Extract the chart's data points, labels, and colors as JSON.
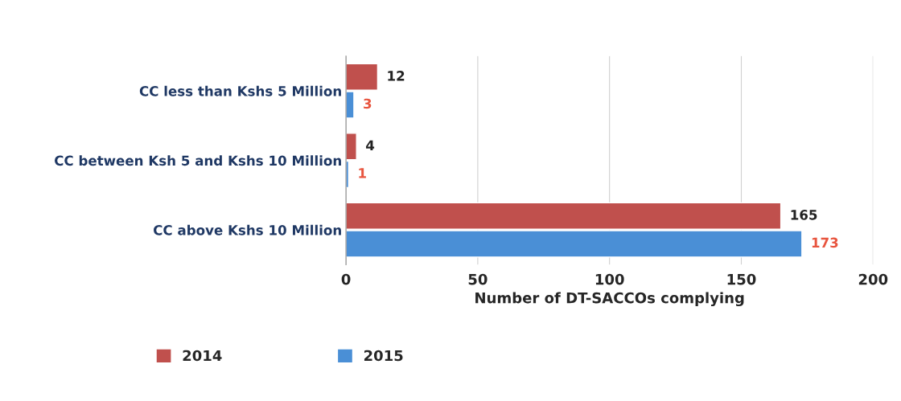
{
  "chart_data": {
    "type": "bar",
    "orientation": "horizontal",
    "xlabel": "Number of DT-SACCOs complying",
    "categories": [
      "CC less than Kshs 5 Million",
      "CC between Ksh 5 and Kshs 10 Million",
      "CC above Kshs 10 Million"
    ],
    "series": [
      {
        "name": "2014",
        "color": "#c0504d",
        "values": [
          12,
          4,
          165
        ]
      },
      {
        "name": "2015",
        "color": "#4a8fd6",
        "values": [
          3,
          1,
          173
        ]
      }
    ],
    "xlim": [
      0,
      200
    ],
    "xticks": [
      0,
      50,
      100,
      150,
      200
    ],
    "grid": "x",
    "legend": "bottom",
    "data_labels": true
  }
}
